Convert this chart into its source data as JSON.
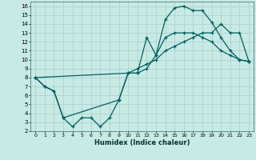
{
  "xlabel": "Humidex (Indice chaleur)",
  "xlim": [
    -0.5,
    23.5
  ],
  "ylim": [
    2,
    16.5
  ],
  "xtick_vals": [
    0,
    1,
    2,
    3,
    4,
    5,
    6,
    7,
    8,
    9,
    10,
    11,
    12,
    13,
    14,
    15,
    16,
    17,
    18,
    19,
    20,
    21,
    22,
    23
  ],
  "ytick_vals": [
    2,
    3,
    4,
    5,
    6,
    7,
    8,
    9,
    10,
    11,
    12,
    13,
    14,
    15,
    16
  ],
  "bg_color": "#c8eae4",
  "grid_color": "#aacccc",
  "line_color": "#006060",
  "lines": [
    {
      "x": [
        0,
        1,
        2,
        3,
        4,
        5,
        6,
        7,
        8,
        9,
        10,
        11,
        12,
        13,
        14,
        15,
        16,
        17,
        18,
        19,
        20,
        21,
        22,
        23
      ],
      "y": [
        8,
        7,
        6.5,
        3.5,
        2.5,
        3.5,
        3.5,
        2.5,
        3.5,
        5.5,
        8.5,
        8.5,
        12.5,
        10.5,
        14.5,
        15.8,
        16,
        15.5,
        15.5,
        14.2,
        12.5,
        11,
        10,
        9.8
      ]
    },
    {
      "x": [
        0,
        1,
        2,
        3,
        9,
        10,
        11,
        12,
        13,
        14,
        15,
        16,
        17,
        18,
        19,
        20,
        21,
        22,
        23
      ],
      "y": [
        8,
        7,
        6.5,
        3.5,
        5.5,
        8.5,
        8.5,
        9,
        10.5,
        12.5,
        13,
        13,
        13,
        12.5,
        12,
        11,
        10.5,
        10,
        9.8
      ]
    },
    {
      "x": [
        0,
        10,
        11,
        12,
        13,
        14,
        15,
        16,
        17,
        18,
        19,
        20,
        21,
        22,
        23
      ],
      "y": [
        8,
        8.5,
        9,
        9.5,
        10,
        11,
        11.5,
        12,
        12.5,
        13,
        13,
        14,
        13,
        13,
        9.8
      ]
    }
  ]
}
